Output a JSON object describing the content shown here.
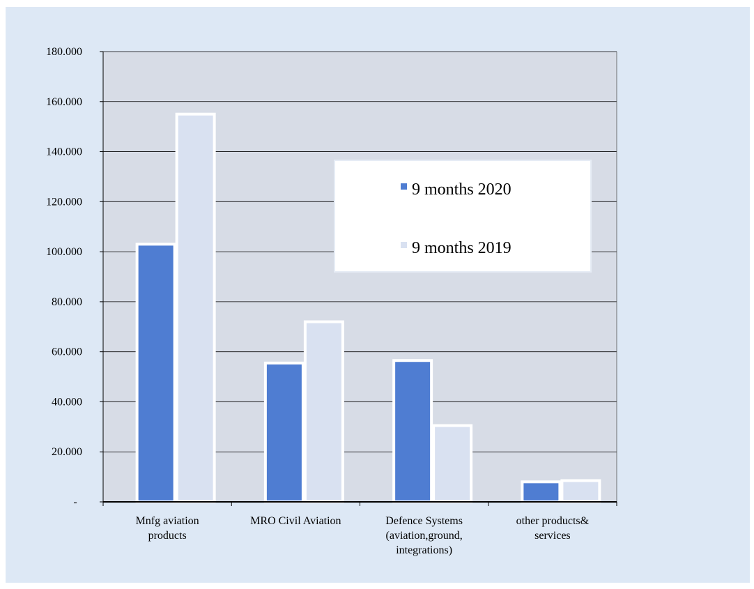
{
  "chart_data": {
    "type": "bar",
    "title": "",
    "xlabel": "",
    "ylabel": "",
    "ylim": [
      0,
      180000
    ],
    "yticks": [
      0,
      20000,
      40000,
      60000,
      80000,
      100000,
      120000,
      140000,
      160000,
      180000
    ],
    "ytick_labels": [
      "-",
      "20.000",
      "40.000",
      "60.000",
      "80.000",
      "100.000",
      "120.000",
      "140.000",
      "160.000",
      "180.000"
    ],
    "categories": [
      [
        "Mnfg aviation",
        "products"
      ],
      [
        "MRO Civil Aviation"
      ],
      [
        "Defence Systems",
        "(aviation,ground,",
        "integrations)"
      ],
      [
        "other products&",
        "services"
      ]
    ],
    "series": [
      {
        "name": "9 months 2020",
        "color": "#4f7dd2",
        "values": [
          103000,
          55500,
          56500,
          8000
        ]
      },
      {
        "name": "9 months 2019",
        "color": "#d9e1f1",
        "values": [
          155000,
          72000,
          30500,
          8500
        ]
      }
    ],
    "grid": true,
    "legend_position": "right-inside"
  },
  "colors": {
    "background": "#dde8f5",
    "plot_area": "#d7dce6",
    "bar_border": "#ffffff",
    "grid": "#000000"
  }
}
